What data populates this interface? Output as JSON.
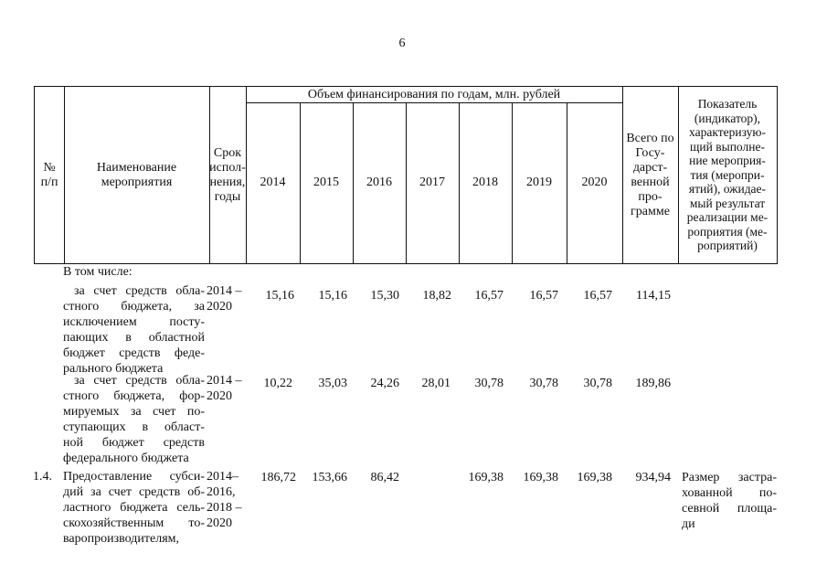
{
  "page_number": "6",
  "header": {
    "num": "№\nп/п",
    "name": "Наименование\nмероприятия",
    "term": "Срок\nиспол-\nнения,\nгоды",
    "funding": "Объем финансирования по годам, млн. рублей",
    "years": [
      "2014",
      "2015",
      "2016",
      "2017",
      "2018",
      "2019",
      "2020"
    ],
    "total": "Всего по\nГосу-\nдарст-\nвенной\nпро-\nграмме",
    "indicator": "Показатель\n(индикатор),\nхарактеризую-\nщий выполне-\nние мероприя-\nтия (меропри-\nятий), ожидае-\nмый результат\nреализации ме-\nроприятия (ме-\nроприятий)"
  },
  "rows": {
    "in_total": "В том числе:",
    "r1": {
      "name": [
        "за счет средств обла-",
        "стного бюджета, за",
        "исключением посту-",
        "пающих в областной",
        "бюджет средств феде-",
        "рального бюджета"
      ],
      "term": "2014 –\n2020",
      "values": [
        "15,16",
        "15,16",
        "15,30",
        "18,82",
        "16,57",
        "16,57",
        "16,57"
      ],
      "total": "114,15"
    },
    "r2": {
      "name": [
        "за счет средств обла-",
        "стного бюджета, фор-",
        "мируемых за счет по-",
        "ступающих в област-",
        "ной бюджет средств",
        "федерального бюджета"
      ],
      "term": "2014 –\n2020",
      "values": [
        "10,22",
        "35,03",
        "24,26",
        "28,01",
        "30,78",
        "30,78",
        "30,78"
      ],
      "total": "189,86"
    },
    "r3": {
      "num": "1.4.",
      "name": [
        "Предоставление субси-",
        "дий за счет средств об-",
        "ластного бюджета сель-",
        "скохозяйственным то-",
        "варопроизводителям,"
      ],
      "term": "2014–\n2016,\n2018 –\n2020",
      "values": [
        "186,72",
        "153,66",
        "86,42",
        "",
        "169,38",
        "169,38",
        "169,38"
      ],
      "total": "934,94",
      "indicator": [
        "Размер застра-",
        "хованной по-",
        "севной площа-",
        "ди"
      ]
    }
  }
}
